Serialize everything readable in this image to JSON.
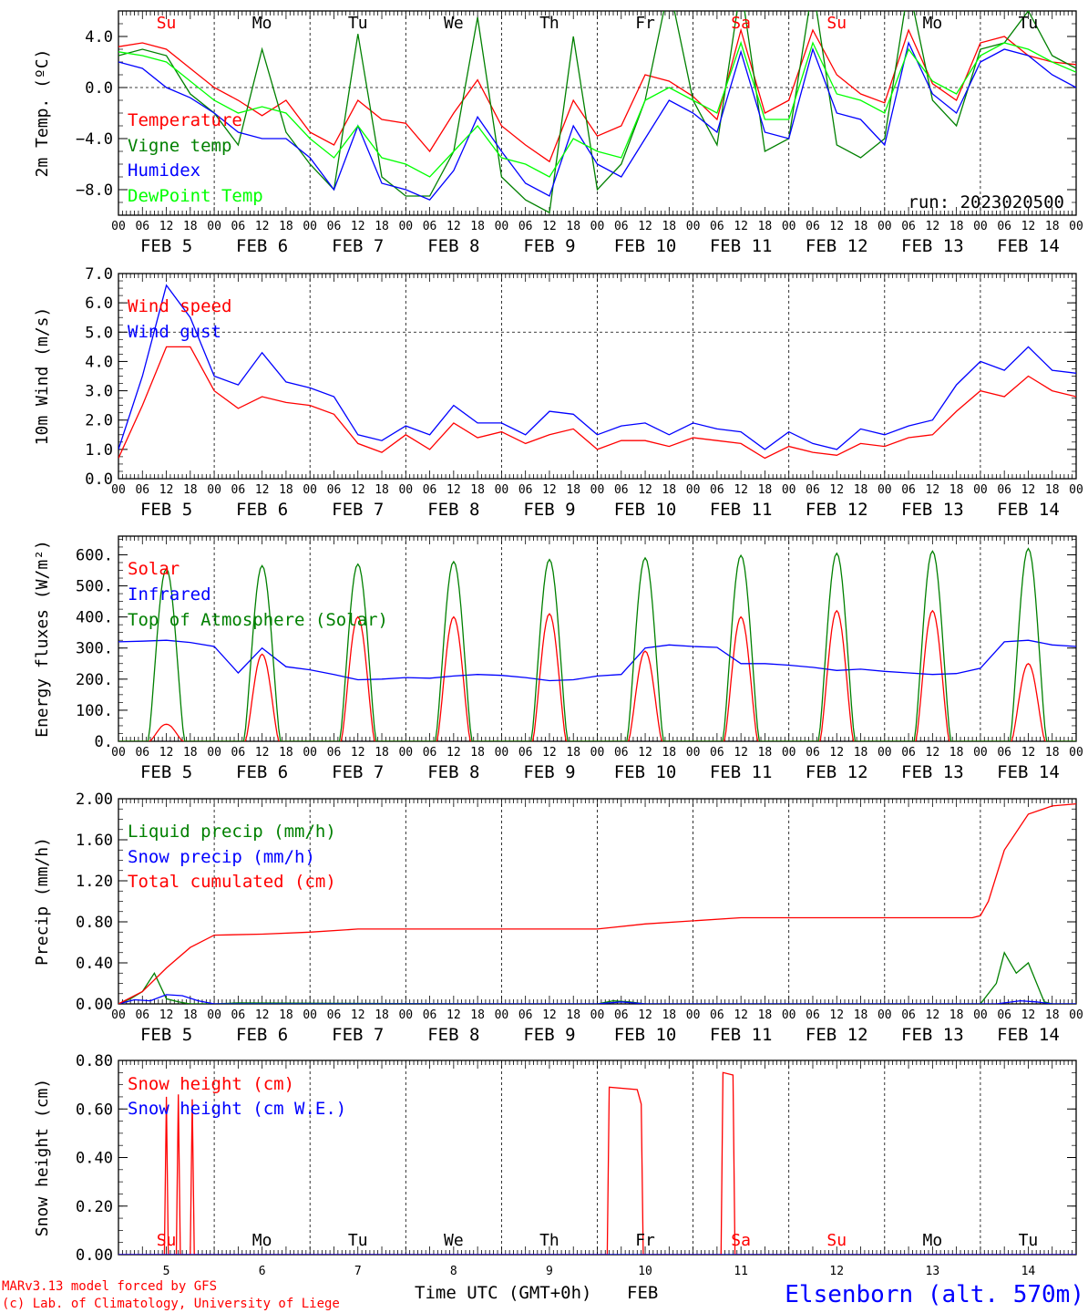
{
  "run_label": "run: 2023020500",
  "footer": {
    "model_line": "MARv3.13 model forced by GFS",
    "copyright_line": "(c) Lab. of Climatology, University of Liege",
    "xaxis_label": "Time UTC (GMT+0h)",
    "month_label": "FEB",
    "station": "Elsenborn (alt. 570m)"
  },
  "days": {
    "weekday_labels": [
      "Su",
      "Mo",
      "Tu",
      "We",
      "Th",
      "Fr",
      "Sa",
      "Su",
      "Mo",
      "Tu"
    ],
    "weekday_colors": [
      "#ff0000",
      "#000000",
      "#000000",
      "#000000",
      "#000000",
      "#000000",
      "#ff0000",
      "#ff0000",
      "#000000",
      "#000000"
    ],
    "date_labels": [
      "FEB  5",
      "FEB  6",
      "FEB  7",
      "FEB  8",
      "FEB  9",
      "FEB 10",
      "FEB 11",
      "FEB 12",
      "FEB 13",
      "FEB 14"
    ],
    "day_numbers": [
      "5",
      "6",
      "7",
      "8",
      "9",
      "10",
      "11",
      "12",
      "13",
      "14"
    ],
    "hour_ticks": [
      "00",
      "06",
      "12",
      "18"
    ]
  },
  "colors": {
    "red": "#ff0000",
    "green": "#008000",
    "blue": "#0000ff",
    "lightgreen": "#00ff00",
    "black": "#000000"
  },
  "chart_data": [
    {
      "type": "line",
      "ylabel": "2m Temp. (ºC)",
      "ylim": [
        -10,
        6
      ],
      "yticks": [
        4.0,
        0.0,
        -4.0,
        -8.0
      ],
      "ytick_labels": [
        "4.0",
        "0.0",
        "−4.0",
        "−8.0"
      ],
      "xlim_hours": [
        0,
        240
      ],
      "zero_line": 0,
      "series": [
        {
          "name": "Temperature",
          "color": "#ff0000",
          "x": [
            0,
            6,
            12,
            18,
            24,
            30,
            36,
            42,
            48,
            54,
            60,
            66,
            72,
            78,
            84,
            90,
            96,
            102,
            108,
            114,
            120,
            126,
            132,
            138,
            144,
            150,
            156,
            162,
            168,
            174,
            180,
            186,
            192,
            198,
            204,
            210,
            216,
            222,
            228,
            234,
            240
          ],
          "y": [
            3.2,
            3.5,
            3.0,
            1.5,
            0.0,
            -1.0,
            -2.2,
            -1.0,
            -3.5,
            -4.5,
            -1.0,
            -2.5,
            -2.8,
            -5.0,
            -2.0,
            0.6,
            -3.0,
            -4.5,
            -5.8,
            -1.0,
            -3.8,
            -3.0,
            1.0,
            0.5,
            -0.7,
            -2.5,
            4.5,
            -2.0,
            -1.0,
            4.5,
            1.0,
            -0.5,
            -1.2,
            4.5,
            0.3,
            -1.0,
            3.5,
            4.0,
            2.5,
            2.0,
            1.8
          ]
        },
        {
          "name": "Vigne temp",
          "color": "#008000",
          "x": [
            0,
            6,
            12,
            18,
            24,
            30,
            36,
            42,
            48,
            54,
            60,
            66,
            72,
            78,
            84,
            90,
            96,
            102,
            108,
            114,
            120,
            126,
            132,
            138,
            144,
            150,
            156,
            162,
            168,
            174,
            180,
            186,
            192,
            198,
            204,
            210,
            216,
            222,
            228,
            234,
            240
          ],
          "y": [
            2.5,
            3.0,
            2.5,
            -0.5,
            -2.0,
            -4.5,
            3.0,
            -3.5,
            -6.0,
            -8.0,
            4.2,
            -7.0,
            -8.5,
            -8.5,
            -5.0,
            5.5,
            -7.0,
            -8.8,
            -9.8,
            4.0,
            -8.0,
            -6.0,
            -1.0,
            8.0,
            -1.0,
            -4.5,
            8.0,
            -5.0,
            -4.0,
            8.0,
            -4.5,
            -5.5,
            -4.0,
            8.0,
            -1.0,
            -3.0,
            3.0,
            3.5,
            6.0,
            2.5,
            1.5
          ]
        },
        {
          "name": "Humidex",
          "color": "#0000ff",
          "x": [
            0,
            6,
            12,
            18,
            24,
            30,
            36,
            42,
            48,
            54,
            60,
            66,
            72,
            78,
            84,
            90,
            96,
            102,
            108,
            114,
            120,
            126,
            132,
            138,
            144,
            150,
            156,
            162,
            168,
            174,
            180,
            186,
            192,
            198,
            204,
            210,
            216,
            222,
            228,
            234,
            240
          ],
          "y": [
            2.0,
            1.5,
            0.0,
            -0.8,
            -2.0,
            -3.5,
            -4.0,
            -4.0,
            -5.5,
            -8.0,
            -3.0,
            -7.5,
            -8.0,
            -8.8,
            -6.5,
            -2.3,
            -5.0,
            -7.5,
            -8.5,
            -3.0,
            -6.0,
            -7.0,
            -4.0,
            -1.0,
            -2.0,
            -3.5,
            2.8,
            -3.5,
            -4.0,
            3.0,
            -2.0,
            -2.5,
            -4.5,
            3.5,
            -0.5,
            -2.0,
            2.0,
            3.0,
            2.5,
            1.0,
            0.0
          ]
        },
        {
          "name": "DewPoint Temp",
          "color": "#00ff00",
          "x": [
            0,
            6,
            12,
            18,
            24,
            30,
            36,
            42,
            48,
            54,
            60,
            66,
            72,
            78,
            84,
            90,
            96,
            102,
            108,
            114,
            120,
            126,
            132,
            138,
            144,
            150,
            156,
            162,
            168,
            174,
            180,
            186,
            192,
            198,
            204,
            210,
            216,
            222,
            228,
            234,
            240
          ],
          "y": [
            2.8,
            2.5,
            2.0,
            0.5,
            -1.0,
            -2.0,
            -1.5,
            -2.0,
            -4.0,
            -5.5,
            -3.0,
            -5.5,
            -6.0,
            -7.0,
            -5.0,
            -3.0,
            -5.5,
            -6.0,
            -7.0,
            -4.0,
            -5.0,
            -5.5,
            -1.0,
            0.0,
            -1.0,
            -2.0,
            3.5,
            -2.5,
            -2.5,
            3.5,
            -0.5,
            -1.0,
            -2.0,
            3.0,
            0.5,
            -0.5,
            2.5,
            3.5,
            3.0,
            2.0,
            1.2
          ]
        }
      ]
    },
    {
      "type": "line",
      "ylabel": "10m Wind (m/s)",
      "ylim": [
        0,
        7.0
      ],
      "yticks": [
        0.0,
        1.0,
        2.0,
        3.0,
        4.0,
        5.0,
        6.0,
        7.0
      ],
      "ytick_labels": [
        "0.0",
        "1.0",
        "2.0",
        "3.0",
        "4.0",
        "5.0",
        "6.0",
        "7.0"
      ],
      "xlim_hours": [
        0,
        240
      ],
      "dashed_line": 5.0,
      "series": [
        {
          "name": "Wind speed",
          "color": "#ff0000",
          "x": [
            0,
            6,
            12,
            18,
            24,
            30,
            36,
            42,
            48,
            54,
            60,
            66,
            72,
            78,
            84,
            90,
            96,
            102,
            108,
            114,
            120,
            126,
            132,
            138,
            144,
            150,
            156,
            162,
            168,
            174,
            180,
            186,
            192,
            198,
            204,
            210,
            216,
            222,
            228,
            234,
            240
          ],
          "y": [
            0.7,
            2.5,
            4.5,
            4.5,
            3.0,
            2.4,
            2.8,
            2.6,
            2.5,
            2.2,
            1.2,
            0.9,
            1.5,
            1.0,
            1.9,
            1.4,
            1.6,
            1.2,
            1.5,
            1.7,
            1.0,
            1.3,
            1.3,
            1.1,
            1.4,
            1.3,
            1.2,
            0.7,
            1.1,
            0.9,
            0.8,
            1.2,
            1.1,
            1.4,
            1.5,
            2.3,
            3.0,
            2.8,
            3.5,
            3.0,
            2.8
          ]
        },
        {
          "name": "Wind gust",
          "color": "#0000ff",
          "x": [
            0,
            6,
            12,
            18,
            24,
            30,
            36,
            42,
            48,
            54,
            60,
            66,
            72,
            78,
            84,
            90,
            96,
            102,
            108,
            114,
            120,
            126,
            132,
            138,
            144,
            150,
            156,
            162,
            168,
            174,
            180,
            186,
            192,
            198,
            204,
            210,
            216,
            222,
            228,
            234,
            240
          ],
          "y": [
            1.0,
            3.5,
            6.6,
            5.5,
            3.5,
            3.2,
            4.3,
            3.3,
            3.1,
            2.8,
            1.5,
            1.3,
            1.8,
            1.5,
            2.5,
            1.9,
            1.9,
            1.5,
            2.3,
            2.2,
            1.5,
            1.8,
            1.9,
            1.5,
            1.9,
            1.7,
            1.6,
            1.0,
            1.6,
            1.2,
            1.0,
            1.7,
            1.5,
            1.8,
            2.0,
            3.2,
            4.0,
            3.7,
            4.5,
            3.7,
            3.6
          ]
        }
      ]
    },
    {
      "type": "line",
      "ylabel": "Energy fluxes (W/m²)",
      "ylim": [
        0,
        660
      ],
      "yticks": [
        0,
        100,
        200,
        300,
        400,
        500,
        600
      ],
      "ytick_labels": [
        "0.",
        "100.",
        "200.",
        "300.",
        "400.",
        "500.",
        "600."
      ],
      "xlim_hours": [
        0,
        240
      ],
      "solar_day_peaks": {
        "solar": [
          55,
          280,
          400,
          400,
          410,
          290,
          400,
          420,
          420,
          250
        ],
        "top_of_atmosphere": [
          555,
          565,
          570,
          578,
          585,
          590,
          598,
          605,
          612,
          620
        ]
      },
      "series": [
        {
          "name": "Solar",
          "color": "#ff0000"
        },
        {
          "name": "Infrared",
          "color": "#0000ff",
          "x": [
            0,
            6,
            12,
            18,
            24,
            30,
            36,
            42,
            48,
            54,
            60,
            66,
            72,
            78,
            84,
            90,
            96,
            102,
            108,
            114,
            120,
            126,
            132,
            138,
            144,
            150,
            156,
            162,
            168,
            174,
            180,
            186,
            192,
            198,
            204,
            210,
            216,
            222,
            228,
            234,
            240
          ],
          "y": [
            320,
            322,
            325,
            318,
            305,
            220,
            300,
            240,
            230,
            215,
            198,
            200,
            205,
            203,
            210,
            215,
            212,
            205,
            195,
            198,
            210,
            215,
            300,
            310,
            305,
            302,
            250,
            250,
            245,
            238,
            228,
            232,
            225,
            220,
            215,
            218,
            235,
            320,
            325,
            310,
            305
          ]
        },
        {
          "name": "Top of Atmosphere (Solar)",
          "color": "#008000"
        }
      ]
    },
    {
      "type": "line",
      "ylabel": "Precip (mm/h)",
      "ylim": [
        0,
        2.0
      ],
      "yticks": [
        0.0,
        0.4,
        0.8,
        1.2,
        1.6,
        2.0
      ],
      "ytick_labels": [
        "0.00",
        "0.40",
        "0.80",
        "1.20",
        "1.60",
        "2.00"
      ],
      "xlim_hours": [
        0,
        240
      ],
      "series": [
        {
          "name": "Liquid precip (mm/h)",
          "color": "#008000",
          "x": [
            0,
            3,
            6,
            9,
            12,
            15,
            18,
            24,
            30,
            96,
            120,
            124,
            128,
            132,
            216,
            220,
            222,
            225,
            228,
            232,
            234,
            240
          ],
          "y": [
            0,
            0.05,
            0.12,
            0.3,
            0.05,
            0.02,
            0.0,
            0.0,
            0.01,
            0.0,
            0.0,
            0.03,
            0.02,
            0.0,
            0.0,
            0.2,
            0.5,
            0.3,
            0.4,
            0.02,
            0.0,
            0.0
          ]
        },
        {
          "name": "Snow precip (mm/h)",
          "color": "#0000ff",
          "x": [
            0,
            4,
            8,
            12,
            16,
            20,
            24,
            120,
            126,
            132,
            220,
            226,
            230,
            234,
            240
          ],
          "y": [
            0,
            0.04,
            0.03,
            0.09,
            0.08,
            0.03,
            0.0,
            0.0,
            0.02,
            0.0,
            0.0,
            0.03,
            0.02,
            0.0,
            0.0
          ]
        },
        {
          "name": "Total cumulated (cm)",
          "color": "#ff0000",
          "x": [
            0,
            6,
            12,
            18,
            24,
            36,
            48,
            60,
            72,
            96,
            120,
            132,
            144,
            156,
            168,
            192,
            214,
            216,
            218,
            222,
            228,
            234,
            240
          ],
          "y": [
            0,
            0.12,
            0.35,
            0.55,
            0.67,
            0.68,
            0.7,
            0.73,
            0.73,
            0.73,
            0.73,
            0.78,
            0.81,
            0.84,
            0.84,
            0.84,
            0.84,
            0.86,
            1.0,
            1.5,
            1.85,
            1.93,
            1.95
          ]
        }
      ]
    },
    {
      "type": "line",
      "ylabel": "Snow height (cm)",
      "ylim": [
        0,
        0.8
      ],
      "yticks": [
        0.0,
        0.2,
        0.4,
        0.6,
        0.8
      ],
      "ytick_labels": [
        "0.00",
        "0.20",
        "0.40",
        "0.60",
        "0.80"
      ],
      "xlim_hours": [
        0,
        240
      ],
      "series": [
        {
          "name": "Snow height (cm)",
          "color": "#ff0000",
          "x": [
            0,
            11.5,
            12,
            12.5,
            14.5,
            15,
            15.5,
            18,
            18.5,
            19,
            122.5,
            123,
            130,
            131,
            131.5,
            151,
            151.5,
            154,
            154.5,
            240
          ],
          "y": [
            0,
            0,
            0.65,
            0,
            0,
            0.66,
            0,
            0,
            0.64,
            0,
            0,
            0.69,
            0.68,
            0.62,
            0,
            0,
            0.75,
            0.74,
            0,
            0
          ]
        },
        {
          "name": "Snow height (cm W.E.)",
          "color": "#0000ff",
          "x": [
            0,
            240
          ],
          "y": [
            0,
            0
          ]
        }
      ]
    }
  ]
}
